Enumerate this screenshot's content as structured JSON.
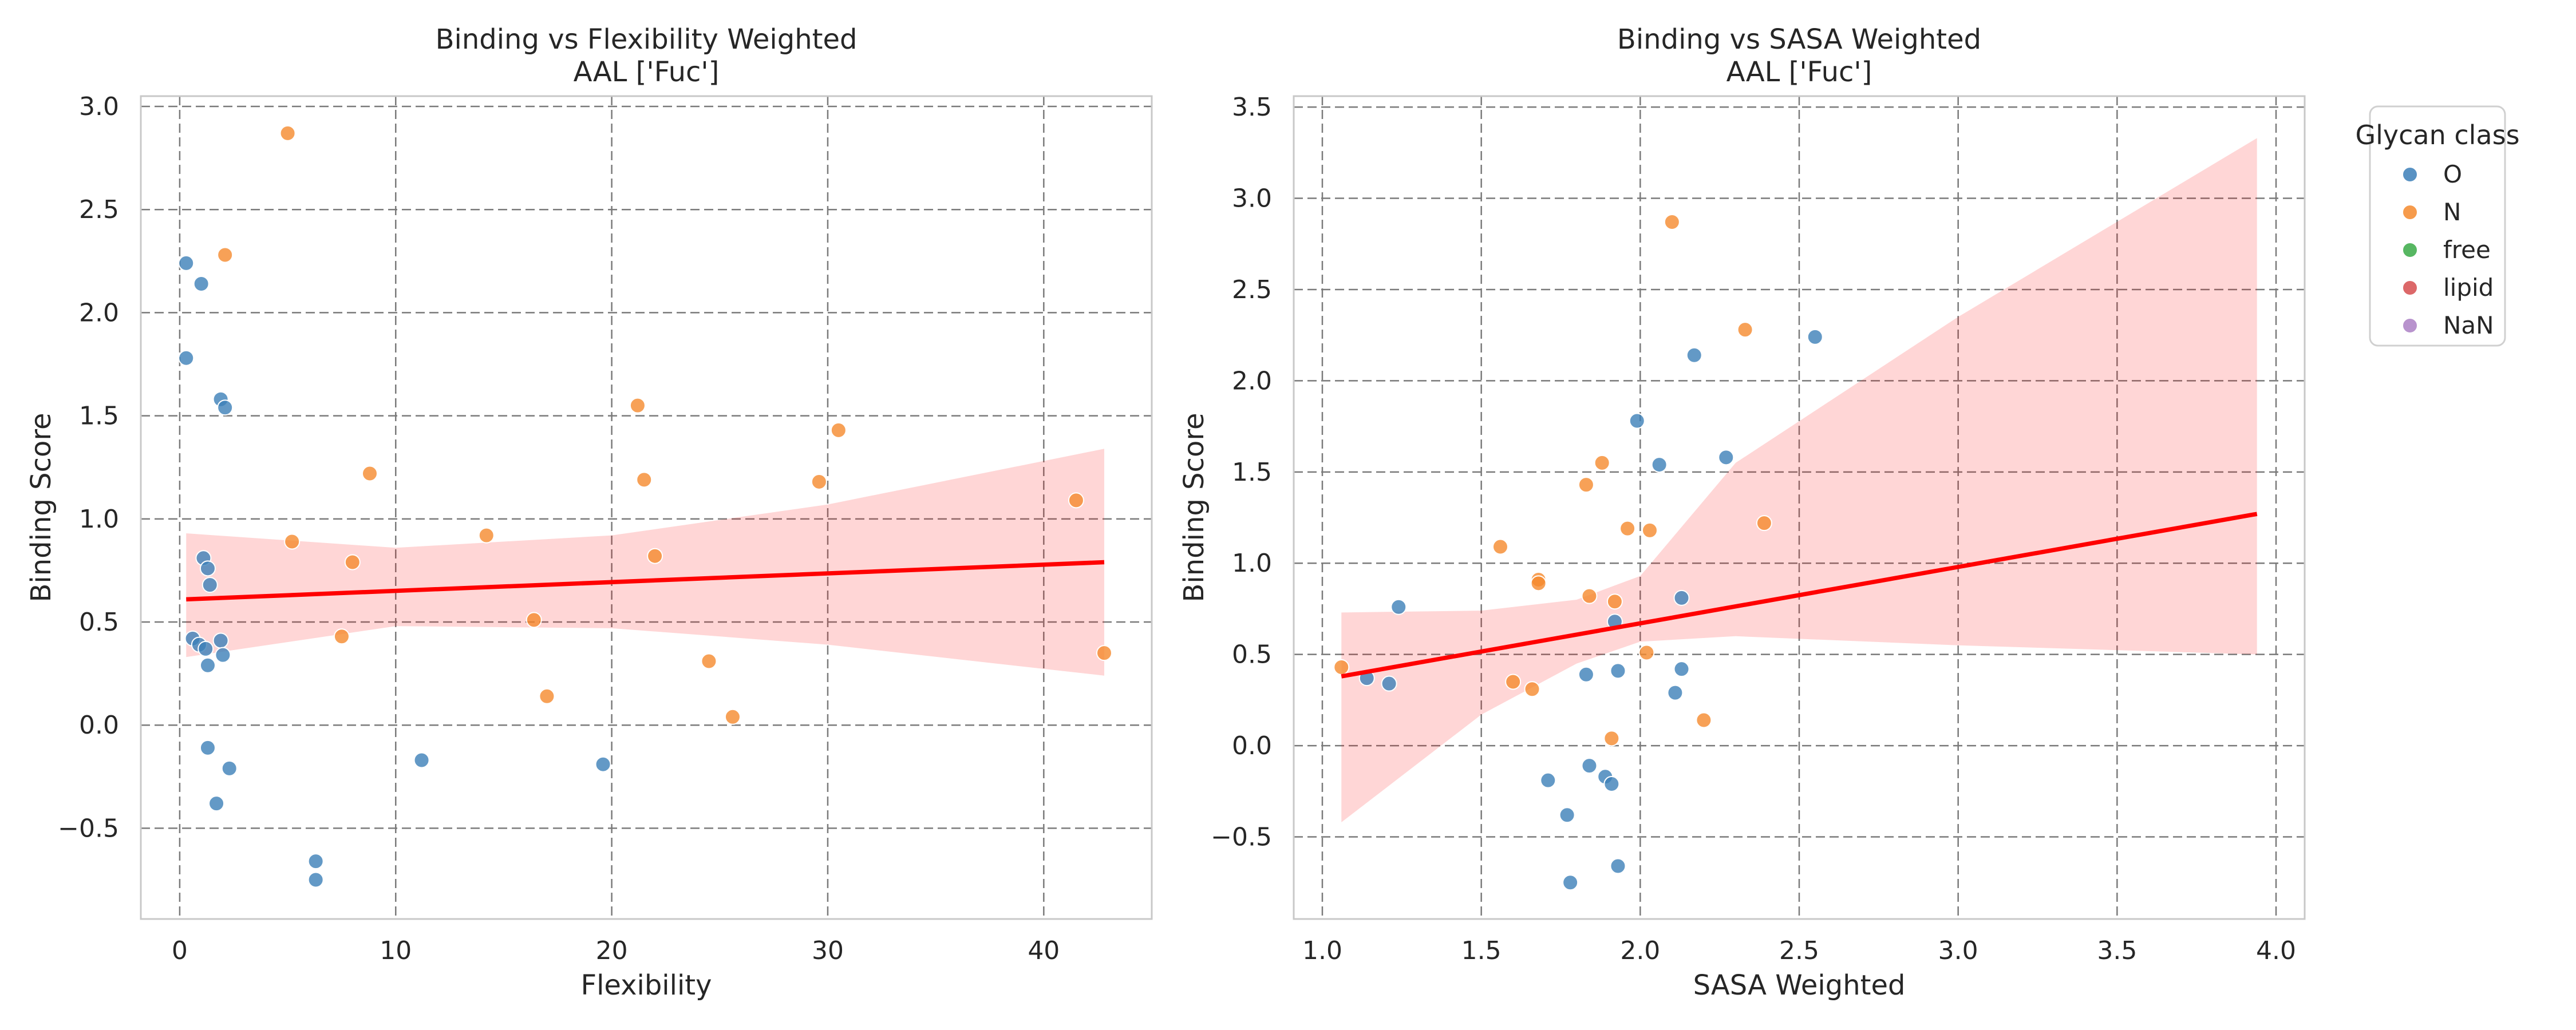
{
  "chart_data": [
    {
      "type": "scatter",
      "title": "Binding vs Flexibility Weighted",
      "subtitle": "AAL ['Fuc']",
      "xlabel": "Flexibility",
      "ylabel": "Binding Score",
      "xlim": [
        -1.8,
        45.0
      ],
      "ylim": [
        -0.94,
        3.05
      ],
      "xticks": [
        0,
        10,
        20,
        30,
        40
      ],
      "yticks": [
        -0.5,
        0.0,
        0.5,
        1.0,
        1.5,
        2.0,
        2.5,
        3.0
      ],
      "xtick_labels": [
        "0",
        "10",
        "20",
        "30",
        "40"
      ],
      "ytick_labels": [
        "−0.5",
        "0.0",
        "0.5",
        "1.0",
        "1.5",
        "2.0",
        "2.5",
        "3.0"
      ],
      "grid": true,
      "series": [
        {
          "name": "O",
          "color": "#3c7fb8",
          "points": [
            [
              0.3,
              2.24
            ],
            [
              1.0,
              2.14
            ],
            [
              0.3,
              1.78
            ],
            [
              1.9,
              1.58
            ],
            [
              2.1,
              1.54
            ],
            [
              1.1,
              0.81
            ],
            [
              1.3,
              0.76
            ],
            [
              1.4,
              0.68
            ],
            [
              0.6,
              0.42
            ],
            [
              0.9,
              0.39
            ],
            [
              1.2,
              0.37
            ],
            [
              1.9,
              0.41
            ],
            [
              2.0,
              0.34
            ],
            [
              1.3,
              0.29
            ],
            [
              1.3,
              -0.11
            ],
            [
              2.3,
              -0.21
            ],
            [
              1.7,
              -0.38
            ],
            [
              11.2,
              -0.17
            ],
            [
              19.6,
              -0.19
            ],
            [
              6.3,
              -0.66
            ],
            [
              6.3,
              -0.75
            ]
          ]
        },
        {
          "name": "N",
          "color": "#f58a2d",
          "points": [
            [
              5.0,
              2.87
            ],
            [
              2.1,
              2.28
            ],
            [
              21.2,
              1.55
            ],
            [
              30.5,
              1.43
            ],
            [
              21.5,
              1.19
            ],
            [
              8.8,
              1.22
            ],
            [
              29.6,
              1.18
            ],
            [
              41.5,
              1.09
            ],
            [
              5.2,
              0.89
            ],
            [
              14.2,
              0.92
            ],
            [
              8.0,
              0.79
            ],
            [
              22.0,
              0.82
            ],
            [
              16.4,
              0.51
            ],
            [
              7.5,
              0.43
            ],
            [
              24.5,
              0.31
            ],
            [
              42.8,
              0.35
            ],
            [
              17.0,
              0.14
            ],
            [
              25.6,
              0.04
            ]
          ]
        },
        {
          "name": "free",
          "color": "#3aaa47",
          "points": []
        },
        {
          "name": "lipid",
          "color": "#d64d4f",
          "points": []
        },
        {
          "name": "NaN",
          "color": "#ac80c4",
          "points": []
        }
      ],
      "regression": {
        "color": "#ff0000",
        "x_range": [
          0.3,
          42.8
        ],
        "line": [
          [
            0.3,
            0.61
          ],
          [
            42.8,
            0.79
          ]
        ],
        "band_upper": [
          [
            0.3,
            0.93
          ],
          [
            10.0,
            0.86
          ],
          [
            20.0,
            0.92
          ],
          [
            30.0,
            1.07
          ],
          [
            42.8,
            1.34
          ]
        ],
        "band_lower": [
          [
            0.3,
            0.33
          ],
          [
            10.0,
            0.48
          ],
          [
            20.0,
            0.47
          ],
          [
            30.0,
            0.39
          ],
          [
            42.8,
            0.24
          ]
        ]
      }
    },
    {
      "type": "scatter",
      "title": "Binding vs SASA Weighted",
      "subtitle": "AAL ['Fuc']",
      "xlabel": "SASA Weighted",
      "ylabel": "Binding Score",
      "xlim": [
        0.91,
        4.09
      ],
      "ylim": [
        -0.95,
        3.56
      ],
      "xticks": [
        1.0,
        1.5,
        2.0,
        2.5,
        3.0,
        3.5,
        4.0
      ],
      "yticks": [
        -0.5,
        0.0,
        0.5,
        1.0,
        1.5,
        2.0,
        2.5,
        3.0,
        3.5
      ],
      "xtick_labels": [
        "1.0",
        "1.5",
        "2.0",
        "2.5",
        "3.0",
        "3.5",
        "4.0"
      ],
      "ytick_labels": [
        "−0.5",
        "0.0",
        "0.5",
        "1.0",
        "1.5",
        "2.0",
        "2.5",
        "3.0",
        "3.5"
      ],
      "grid": true,
      "series": [
        {
          "name": "O",
          "color": "#3c7fb8",
          "points": [
            [
              2.55,
              2.24
            ],
            [
              2.17,
              2.14
            ],
            [
              1.99,
              1.78
            ],
            [
              2.27,
              1.58
            ],
            [
              2.06,
              1.54
            ],
            [
              2.13,
              0.81
            ],
            [
              1.24,
              0.76
            ],
            [
              1.92,
              0.68
            ],
            [
              1.83,
              0.39
            ],
            [
              1.93,
              0.41
            ],
            [
              2.13,
              0.42
            ],
            [
              1.14,
              0.37
            ],
            [
              1.21,
              0.34
            ],
            [
              2.11,
              0.29
            ],
            [
              1.84,
              -0.11
            ],
            [
              1.89,
              -0.17
            ],
            [
              1.91,
              -0.21
            ],
            [
              1.71,
              -0.19
            ],
            [
              1.77,
              -0.38
            ],
            [
              1.93,
              -0.66
            ],
            [
              1.78,
              -0.75
            ]
          ]
        },
        {
          "name": "N",
          "color": "#f58a2d",
          "points": [
            [
              2.1,
              2.87
            ],
            [
              2.33,
              2.28
            ],
            [
              1.88,
              1.55
            ],
            [
              1.83,
              1.43
            ],
            [
              1.96,
              1.19
            ],
            [
              2.03,
              1.18
            ],
            [
              2.39,
              1.22
            ],
            [
              1.56,
              1.09
            ],
            [
              1.68,
              0.91
            ],
            [
              1.68,
              0.89
            ],
            [
              1.84,
              0.82
            ],
            [
              1.92,
              0.79
            ],
            [
              2.02,
              0.51
            ],
            [
              1.06,
              0.43
            ],
            [
              1.6,
              0.35
            ],
            [
              1.66,
              0.31
            ],
            [
              2.2,
              0.14
            ],
            [
              1.91,
              0.04
            ]
          ]
        },
        {
          "name": "free",
          "color": "#3aaa47",
          "points": []
        },
        {
          "name": "lipid",
          "color": "#d64d4f",
          "points": []
        },
        {
          "name": "NaN",
          "color": "#ac80c4",
          "points": []
        }
      ],
      "regression": {
        "color": "#ff0000",
        "x_range": [
          1.06,
          3.94
        ],
        "line": [
          [
            1.06,
            0.38
          ],
          [
            3.94,
            1.27
          ]
        ],
        "band_upper": [
          [
            1.06,
            0.73
          ],
          [
            1.5,
            0.74
          ],
          [
            1.8,
            0.8
          ],
          [
            2.0,
            0.93
          ],
          [
            2.3,
            1.55
          ],
          [
            3.0,
            2.35
          ],
          [
            3.94,
            3.33
          ]
        ],
        "band_lower": [
          [
            1.06,
            -0.42
          ],
          [
            1.5,
            0.17
          ],
          [
            1.8,
            0.45
          ],
          [
            2.0,
            0.57
          ],
          [
            2.3,
            0.6
          ],
          [
            3.0,
            0.55
          ],
          [
            3.94,
            0.5
          ]
        ]
      }
    }
  ],
  "legend": {
    "title": "Glycan class",
    "placement": "outside-right",
    "entries": [
      {
        "label": "O",
        "color": "#3c7fb8"
      },
      {
        "label": "N",
        "color": "#f58a2d"
      },
      {
        "label": "free",
        "color": "#3aaa47"
      },
      {
        "label": "lipid",
        "color": "#d64d4f"
      },
      {
        "label": "NaN",
        "color": "#ac80c4"
      }
    ]
  }
}
